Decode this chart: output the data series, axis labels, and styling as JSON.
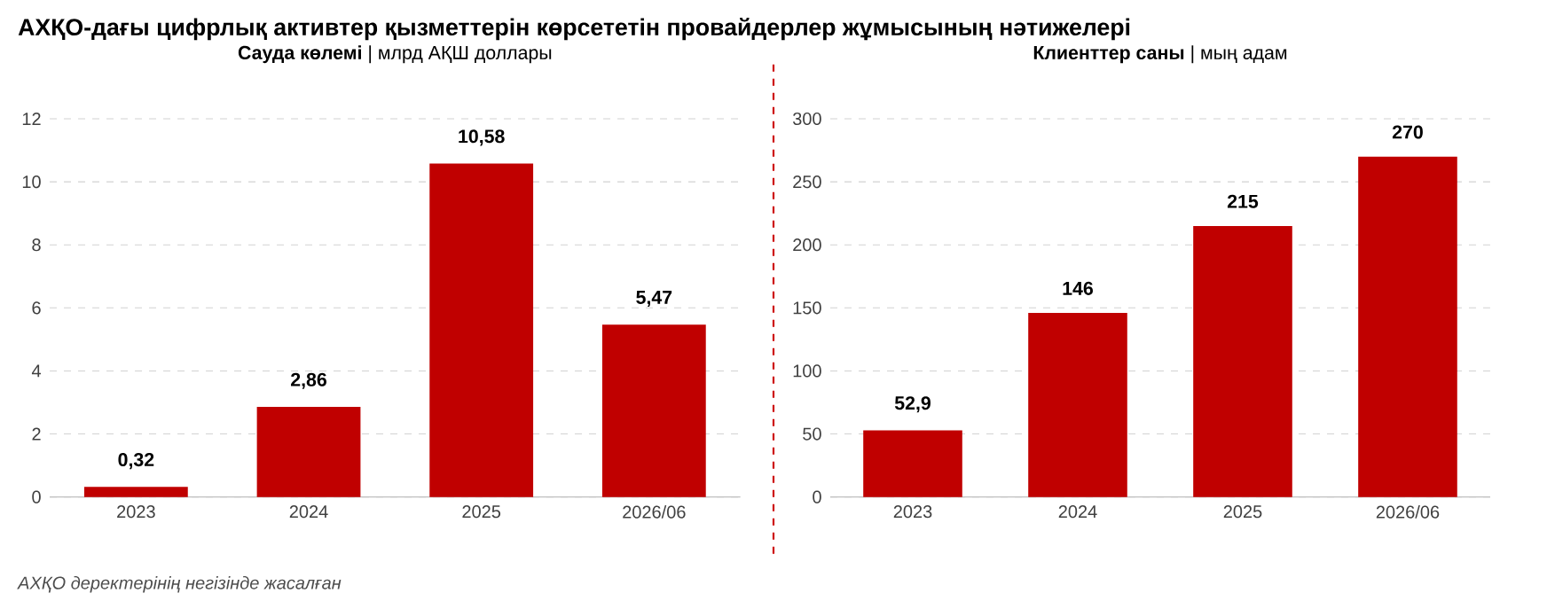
{
  "chart_data": [
    {
      "type": "bar",
      "title": "АХҚО-дағы цифрлық активтер қызметтерін көрсететін провайдерлер жұмысының нәтижелері",
      "subtitle": "**Сауда көлемі** | млрд АҚШ доллары",
      "categories": [
        "2023",
        "2024",
        "2025",
        "2026/06"
      ],
      "values": [
        0.32,
        2.86,
        10.58,
        5.47
      ],
      "value_labels": [
        "0,32",
        "2,86",
        "10,58",
        "5,47"
      ],
      "color": "#c00000",
      "ylim": [
        0,
        12
      ],
      "yticks": [
        0,
        2,
        4,
        6,
        8,
        10,
        12
      ],
      "grid": "y",
      "annotations": [
        "АХҚО деректерінің негізінде жасалған"
      ]
    },
    {
      "type": "bar",
      "subtitle": "**Клиенттер саны** | мың адам",
      "categories": [
        "2023",
        "2024",
        "2025",
        "2026/06"
      ],
      "values": [
        52.9,
        146,
        215,
        270
      ],
      "value_labels": [
        "52,9",
        "146",
        "215",
        "270"
      ],
      "color": "#c00000",
      "ylim": [
        0,
        300
      ],
      "yticks": [
        0,
        50,
        100,
        150,
        200,
        250,
        300
      ],
      "grid": "y"
    }
  ]
}
